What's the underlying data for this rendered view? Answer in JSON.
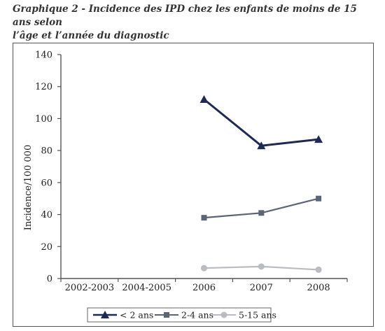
{
  "caption": {
    "line1": "Graphique 2  -  Incidence des IPD chez les enfants de moins de 15 ans selon",
    "line2": "l’âge et l’année du diagnostic"
  },
  "chart_data": {
    "type": "line",
    "categories": [
      "2002-2003",
      "2004-2005",
      "2006",
      "2007",
      "2008"
    ],
    "ylabel": "Incidence/100 000",
    "xlabel": "",
    "ylim": [
      0,
      140
    ],
    "yticks": [
      0,
      20,
      40,
      60,
      80,
      100,
      120,
      140
    ],
    "grid": false,
    "legend_position": "bottom",
    "series": [
      {
        "name": "< 2 ans",
        "values": [
          null,
          null,
          112,
          83,
          87
        ],
        "color": "#1c2a55",
        "marker": "triangle"
      },
      {
        "name": "2-4 ans",
        "values": [
          null,
          null,
          38,
          41,
          50
        ],
        "color": "#5a6577",
        "marker": "square"
      },
      {
        "name": "5-15 ans",
        "values": [
          null,
          null,
          6.5,
          7.5,
          5.5
        ],
        "color": "#b9bcc0",
        "marker": "circle"
      }
    ]
  }
}
